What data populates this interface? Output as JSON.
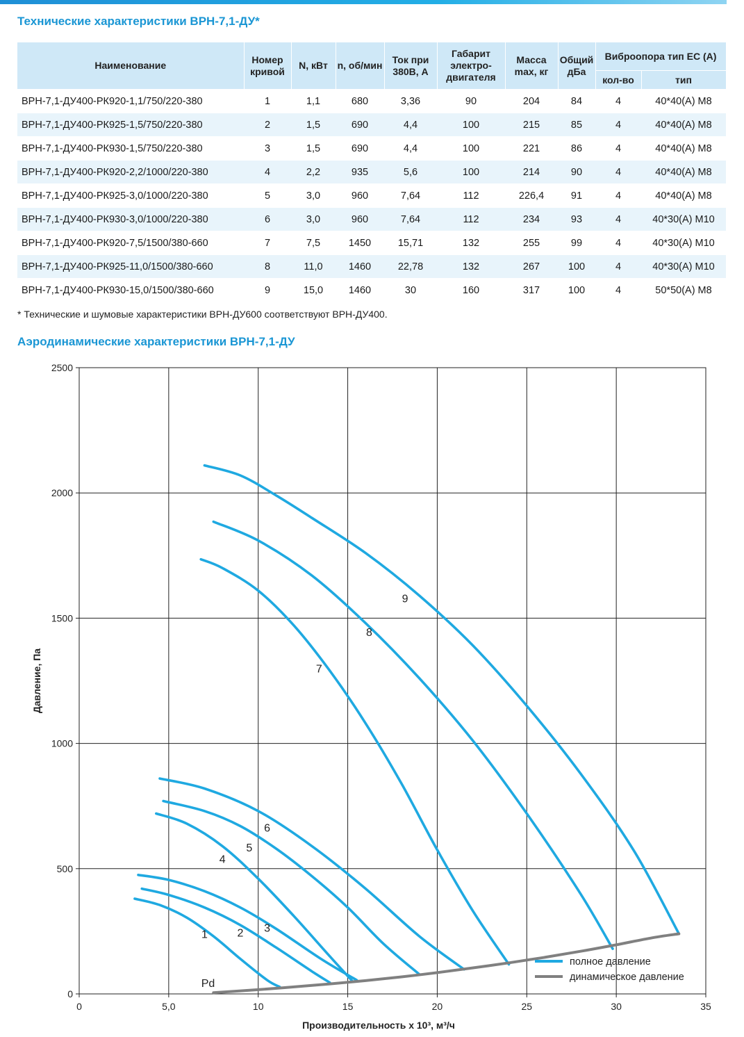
{
  "titles": {
    "table": "Технические характеристики ВРН-7,1-ДУ*",
    "chart": "Аэродинамические характеристики ВРН-7,1-ДУ"
  },
  "table": {
    "headers": {
      "name": "Наименование",
      "curve": "Номер кривой",
      "power": "N, кВт",
      "rpm": "n, об/мин",
      "current": "Ток при 380В, А",
      "frame": "Габарит электро-двигателя",
      "mass": "Масса max, кг",
      "noise": "Общий дБа",
      "vibro": "Виброопора тип ЕС (А)",
      "vibro_qty": "кол-во",
      "vibro_type": "тип"
    },
    "rows": [
      [
        "ВРН-7,1-ДУ400-РК920-1,1/750/220-380",
        "1",
        "1,1",
        "680",
        "3,36",
        "90",
        "204",
        "84",
        "4",
        "40*40(А) М8"
      ],
      [
        "ВРН-7,1-ДУ400-РК925-1,5/750/220-380",
        "2",
        "1,5",
        "690",
        "4,4",
        "100",
        "215",
        "85",
        "4",
        "40*40(А) М8"
      ],
      [
        "ВРН-7,1-ДУ400-РК930-1,5/750/220-380",
        "3",
        "1,5",
        "690",
        "4,4",
        "100",
        "221",
        "86",
        "4",
        "40*40(А) М8"
      ],
      [
        "ВРН-7,1-ДУ400-РК920-2,2/1000/220-380",
        "4",
        "2,2",
        "935",
        "5,6",
        "100",
        "214",
        "90",
        "4",
        "40*40(А) М8"
      ],
      [
        "ВРН-7,1-ДУ400-РК925-3,0/1000/220-380",
        "5",
        "3,0",
        "960",
        "7,64",
        "112",
        "226,4",
        "91",
        "4",
        "40*40(А) М8"
      ],
      [
        "ВРН-7,1-ДУ400-РК930-3,0/1000/220-380",
        "6",
        "3,0",
        "960",
        "7,64",
        "112",
        "234",
        "93",
        "4",
        "40*30(А) М10"
      ],
      [
        "ВРН-7,1-ДУ400-РК920-7,5/1500/380-660",
        "7",
        "7,5",
        "1450",
        "15,71",
        "132",
        "255",
        "99",
        "4",
        "40*30(А) М10"
      ],
      [
        "ВРН-7,1-ДУ400-РК925-11,0/1500/380-660",
        "8",
        "11,0",
        "1460",
        "22,78",
        "132",
        "267",
        "100",
        "4",
        "40*30(А) М10"
      ],
      [
        "ВРН-7,1-ДУ400-РК930-15,0/1500/380-660",
        "9",
        "15,0",
        "1460",
        "30",
        "160",
        "317",
        "100",
        "4",
        "50*50(А) М8"
      ]
    ]
  },
  "footnote": "* Технические и шумовые характеристики ВРН-ДУ600 соответствуют ВРН-ДУ400.",
  "colors": {
    "accent": "#1a96d4",
    "full_pressure": "#1fa9e1",
    "dynamic_pressure": "#808080",
    "header_bg": "#cfe8f7",
    "stripe": "#e8f4fb"
  },
  "chart_data": {
    "type": "line",
    "xlabel": "Производительность х 10³, м³/ч",
    "ylabel": "Давление, Па",
    "xlim": [
      0,
      35
    ],
    "ylim": [
      0,
      2500
    ],
    "x_ticks": [
      0,
      5,
      10,
      15,
      20,
      25,
      30,
      35
    ],
    "x_tick_labels": [
      "0",
      "5,0",
      "10",
      "15",
      "20",
      "25",
      "30",
      "35"
    ],
    "y_ticks": [
      0,
      500,
      1000,
      1500,
      2000,
      2500
    ],
    "y_tick_labels": [
      "0",
      "500",
      "1000",
      "1500",
      "2000",
      "2500"
    ],
    "grid": true,
    "legend": {
      "position": "bottom-right",
      "entries": [
        "полное давление",
        "динамическое давление"
      ]
    },
    "series": [
      {
        "name": "1",
        "kind": "full",
        "label_at": [
          7,
          240
        ],
        "x": [
          3.1,
          4.5,
          6.0,
          7.5,
          9.0,
          10.5,
          11.2
        ],
        "y": [
          380,
          355,
          305,
          230,
          140,
          55,
          28
        ]
      },
      {
        "name": "2",
        "kind": "full",
        "label_at": [
          9,
          245
        ],
        "x": [
          3.5,
          5.0,
          7.0,
          9.0,
          11.0,
          13.0,
          14.0
        ],
        "y": [
          420,
          395,
          345,
          275,
          185,
          90,
          45
        ]
      },
      {
        "name": "3",
        "kind": "full",
        "label_at": [
          10.5,
          265
        ],
        "x": [
          3.3,
          5.0,
          7.0,
          9.0,
          11.0,
          13.5,
          15.5
        ],
        "y": [
          475,
          455,
          410,
          345,
          260,
          140,
          55
        ]
      },
      {
        "name": "4",
        "kind": "full",
        "label_at": [
          8,
          540
        ],
        "x": [
          4.3,
          6.0,
          8.0,
          10.0,
          12.0,
          14.0,
          15.3
        ],
        "y": [
          720,
          680,
          590,
          460,
          310,
          150,
          48
        ]
      },
      {
        "name": "5",
        "kind": "full",
        "label_at": [
          9.5,
          585
        ],
        "x": [
          4.7,
          7.0,
          9.0,
          11.0,
          13.0,
          15.0,
          17.0,
          19.0
        ],
        "y": [
          770,
          730,
          670,
          580,
          470,
          345,
          200,
          78
        ]
      },
      {
        "name": "6",
        "kind": "full",
        "label_at": [
          10.5,
          665
        ],
        "x": [
          4.5,
          7.0,
          10.0,
          13.0,
          16.0,
          19.0,
          21.5
        ],
        "y": [
          860,
          820,
          730,
          590,
          420,
          230,
          98
        ]
      },
      {
        "name": "7",
        "kind": "full",
        "label_at": [
          13.4,
          1300
        ],
        "x": [
          6.8,
          8.0,
          10.0,
          12.0,
          14.0,
          16.0,
          18.0,
          20.0,
          22.0,
          24.0
        ],
        "y": [
          1735,
          1700,
          1610,
          1470,
          1290,
          1080,
          840,
          575,
          330,
          118
        ]
      },
      {
        "name": "8",
        "kind": "full",
        "label_at": [
          16.2,
          1445
        ],
        "x": [
          7.5,
          10.0,
          13.0,
          16.0,
          19.0,
          22.0,
          25.0,
          28.0,
          29.8
        ],
        "y": [
          1885,
          1810,
          1670,
          1480,
          1260,
          1010,
          720,
          400,
          180
        ]
      },
      {
        "name": "9",
        "kind": "full",
        "label_at": [
          18.2,
          1580
        ],
        "x": [
          7.0,
          9.0,
          11.0,
          13.0,
          16.0,
          19.0,
          22.0,
          25.0,
          28.0,
          31.0,
          33.5
        ],
        "y": [
          2110,
          2070,
          1990,
          1900,
          1760,
          1590,
          1390,
          1150,
          880,
          570,
          240
        ]
      },
      {
        "name": "Pd",
        "kind": "dynamic",
        "label_at": [
          7.2,
          45
        ],
        "x": [
          7.5,
          10,
          12,
          14,
          16,
          18,
          20,
          22,
          24,
          26,
          28,
          30,
          32,
          33.5
        ],
        "y": [
          5,
          17,
          28,
          40,
          53,
          68,
          85,
          104,
          124,
          146,
          170,
          196,
          224,
          240
        ]
      }
    ]
  }
}
